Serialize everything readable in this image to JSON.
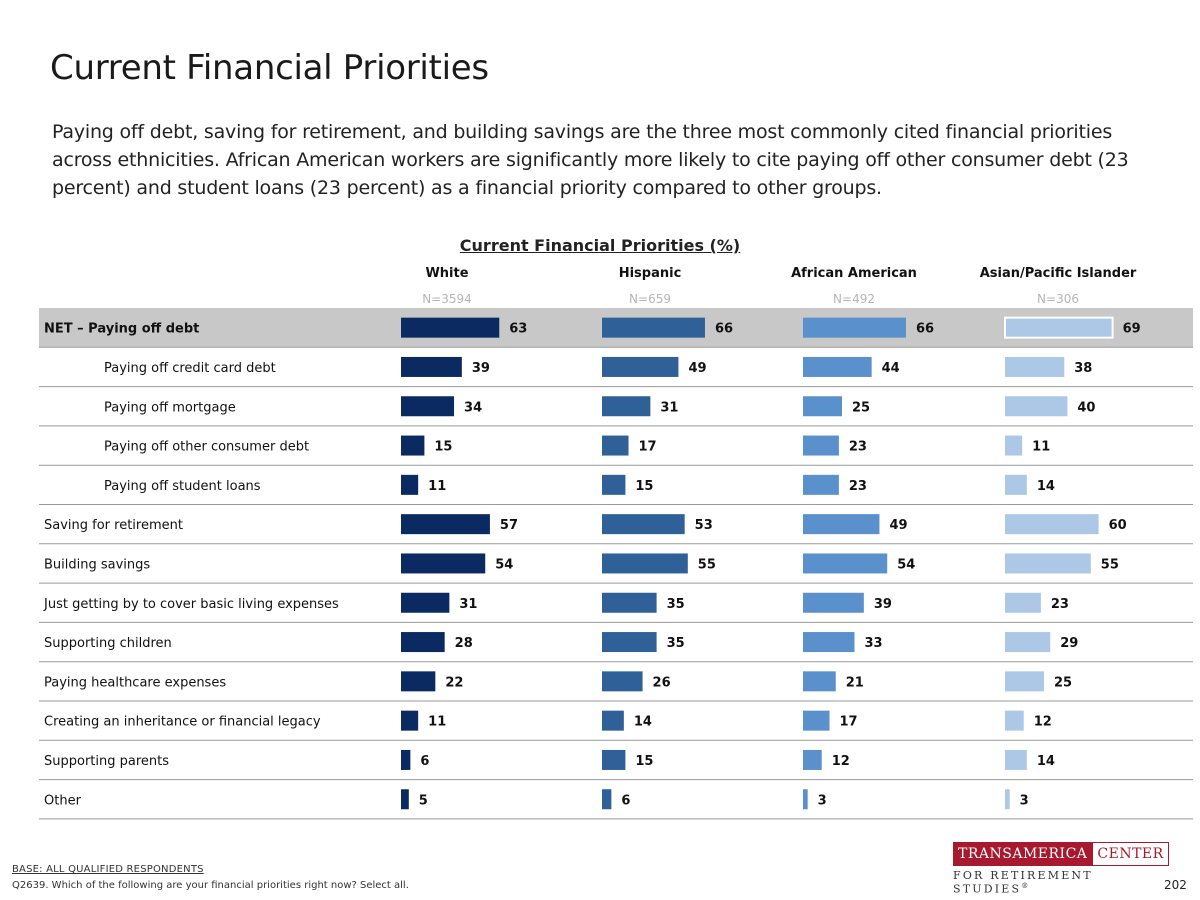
{
  "title": "Current Financial Priorities",
  "subtitle": "Paying off debt, saving for retirement, and building savings are the three most commonly cited financial priorities across ethnicities. African American workers are significantly more likely to cite paying off other consumer debt (23 percent) and student loans (23 percent) as a financial priority compared to other groups.",
  "chart_data": {
    "type": "bar",
    "orientation": "horizontal",
    "title": "Current Financial Priorities (%)",
    "xlim": [
      0,
      100
    ],
    "categories": [
      "NET – Paying off debt",
      "Paying off credit card debt",
      "Paying off mortgage",
      "Paying off other consumer debt",
      "Paying off student loans",
      "Saving for retirement",
      "Building savings",
      "Just getting by to cover basic living expenses",
      "Supporting children",
      "Paying healthcare expenses",
      "Creating an inheritance or financial legacy",
      "Supporting parents",
      "Other"
    ],
    "indented": [
      false,
      true,
      true,
      true,
      true,
      false,
      false,
      false,
      false,
      false,
      false,
      false,
      false
    ],
    "highlighted_row": 0,
    "series": [
      {
        "name": "White",
        "n": "N=3594",
        "color": "#0b2a62",
        "values": [
          63,
          39,
          34,
          15,
          11,
          57,
          54,
          31,
          28,
          22,
          11,
          6,
          5
        ]
      },
      {
        "name": "Hispanic",
        "n": "N=659",
        "color": "#2f6198",
        "values": [
          66,
          49,
          31,
          17,
          15,
          53,
          55,
          35,
          35,
          26,
          14,
          15,
          6
        ]
      },
      {
        "name": "African American",
        "n": "N=492",
        "color": "#5a90cc",
        "values": [
          66,
          44,
          25,
          23,
          23,
          49,
          54,
          39,
          33,
          21,
          17,
          12,
          3
        ]
      },
      {
        "name": "Asian/Pacific Islander",
        "n": "N=306",
        "color": "#acc8e6",
        "values": [
          69,
          38,
          40,
          11,
          14,
          60,
          55,
          23,
          29,
          25,
          12,
          14,
          3
        ]
      }
    ]
  },
  "footer": {
    "base": "BASE:  ALL QUALIFIED RESPONDENTS",
    "question": "Q2639. Which of the following are your financial priorities right now? Select all."
  },
  "logo": {
    "name": "TRANSAMERICA",
    "center": "CENTER",
    "tagline": "FOR RETIREMENT STUDIES",
    "mark": "®"
  },
  "page_number": "202"
}
